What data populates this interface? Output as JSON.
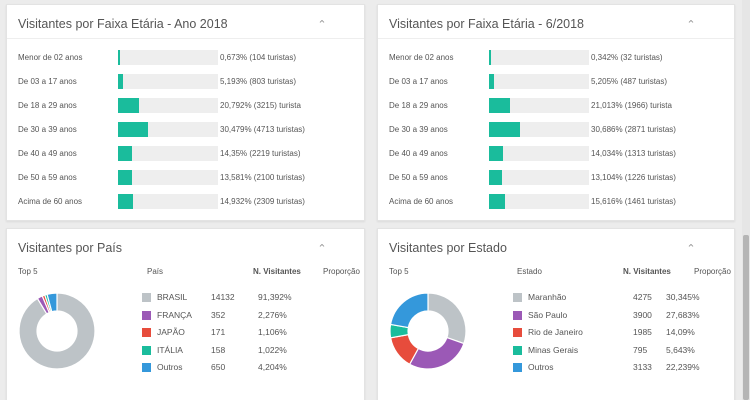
{
  "age_2018": {
    "title": "Visitantes por Faixa Etária - Ano 2018",
    "rows": [
      {
        "label": "Menor de 02 anos",
        "value": "0,673% (104 turistas)",
        "pct": 0.673
      },
      {
        "label": "De 03 a 17 anos",
        "value": "5,193% (803 turistas)",
        "pct": 5.193
      },
      {
        "label": "De 18 a 29 anos",
        "value": "20,792% (3215) turista",
        "pct": 20.792
      },
      {
        "label": "De 30 a 39 anos",
        "value": "30,479% (4713 turistas)",
        "pct": 30.479
      },
      {
        "label": "De 40 a 49 anos",
        "value": "14,35% (2219 turistas)",
        "pct": 14.35
      },
      {
        "label": "De 50 a 59 anos",
        "value": "13,581% (2100 turistas)",
        "pct": 13.581
      },
      {
        "label": "Acima de 60 anos",
        "value": "14,932% (2309 turistas)",
        "pct": 14.932
      }
    ]
  },
  "age_062018": {
    "title": "Visitantes por Faixa Etária - 6/2018",
    "rows": [
      {
        "label": "Menor de 02 anos",
        "value": "0,342% (32 turistas)",
        "pct": 0.342
      },
      {
        "label": "De 03 a 17 anos",
        "value": "5,205% (487 turistas)",
        "pct": 5.205
      },
      {
        "label": "De 18 a 29 anos",
        "value": "21,013% (1966) turista",
        "pct": 21.013
      },
      {
        "label": "De 30 a 39 anos",
        "value": "30,686% (2871 turistas)",
        "pct": 30.686
      },
      {
        "label": "De 40 a 49 anos",
        "value": "14,034% (1313 turistas)",
        "pct": 14.034
      },
      {
        "label": "De 50 a 59 anos",
        "value": "13,104% (1226 turistas)",
        "pct": 13.104
      },
      {
        "label": "Acima de 60 anos",
        "value": "15,616% (1461 turistas)",
        "pct": 15.616
      }
    ]
  },
  "country": {
    "title": "Visitantes por País",
    "top_label": "Top 5",
    "col_name": "País",
    "col_visitors": "N. Visitantes",
    "col_share": "Proporção",
    "rows": [
      {
        "name": "BRASIL",
        "visitors": "14132",
        "share": "91,392%",
        "color": "#bdc3c7",
        "value": 14132
      },
      {
        "name": "FRANÇA",
        "visitors": "352",
        "share": "2,276%",
        "color": "#9b59b6",
        "value": 352
      },
      {
        "name": "JAPÃO",
        "visitors": "171",
        "share": "1,106%",
        "color": "#e74c3c",
        "value": 171
      },
      {
        "name": "ITÁLIA",
        "visitors": "158",
        "share": "1,022%",
        "color": "#1abc9c",
        "value": 158
      },
      {
        "name": "Outros",
        "visitors": "650",
        "share": "4,204%",
        "color": "#3498db",
        "value": 650
      }
    ]
  },
  "state": {
    "title": "Visitantes por Estado",
    "top_label": "Top 5",
    "col_name": "Estado",
    "col_visitors": "N. Visitantes",
    "col_share": "Proporção",
    "rows": [
      {
        "name": "Maranhão",
        "visitors": "4275",
        "share": "30,345%",
        "color": "#bdc3c7",
        "value": 4275
      },
      {
        "name": "São Paulo",
        "visitors": "3900",
        "share": "27,683%",
        "color": "#9b59b6",
        "value": 3900
      },
      {
        "name": "Rio de Janeiro",
        "visitors": "1985",
        "share": "14,09%",
        "color": "#e74c3c",
        "value": 1985
      },
      {
        "name": "Minas Gerais",
        "visitors": "795",
        "share": "5,643%",
        "color": "#1abc9c",
        "value": 795
      },
      {
        "name": "Outros",
        "visitors": "3133",
        "share": "22,239%",
        "color": "#3498db",
        "value": 3133
      }
    ]
  },
  "icons": {
    "collapse": "chevron-up-icon"
  },
  "colors": {
    "bar_fill": "#1abc9c",
    "bar_track": "#eeeeee"
  },
  "chart_data": [
    {
      "type": "bar",
      "title": "Visitantes por Faixa Etária - Ano 2018",
      "categories": [
        "Menor de 02 anos",
        "De 03 a 17 anos",
        "De 18 a 29 anos",
        "De 30 a 39 anos",
        "De 40 a 49 anos",
        "De 50 a 59 anos",
        "Acima de 60 anos"
      ],
      "values": [
        0.673,
        5.193,
        20.792,
        30.479,
        14.35,
        13.581,
        14.932
      ]
    },
    {
      "type": "bar",
      "title": "Visitantes por Faixa Etária - 6/2018",
      "categories": [
        "Menor de 02 anos",
        "De 03 a 17 anos",
        "De 18 a 29 anos",
        "De 30 a 39 anos",
        "De 40 a 49 anos",
        "De 50 a 59 anos",
        "Acima de 60 anos"
      ],
      "values": [
        0.342,
        5.205,
        21.013,
        30.686,
        14.034,
        13.104,
        15.616
      ]
    },
    {
      "type": "pie",
      "title": "Visitantes por País",
      "categories": [
        "BRASIL",
        "FRANÇA",
        "JAPÃO",
        "ITÁLIA",
        "Outros"
      ],
      "values": [
        14132,
        352,
        171,
        158,
        650
      ]
    },
    {
      "type": "pie",
      "title": "Visitantes por Estado",
      "categories": [
        "Maranhão",
        "São Paulo",
        "Rio de Janeiro",
        "Minas Gerais",
        "Outros"
      ],
      "values": [
        4275,
        3900,
        1985,
        795,
        3133
      ]
    }
  ]
}
